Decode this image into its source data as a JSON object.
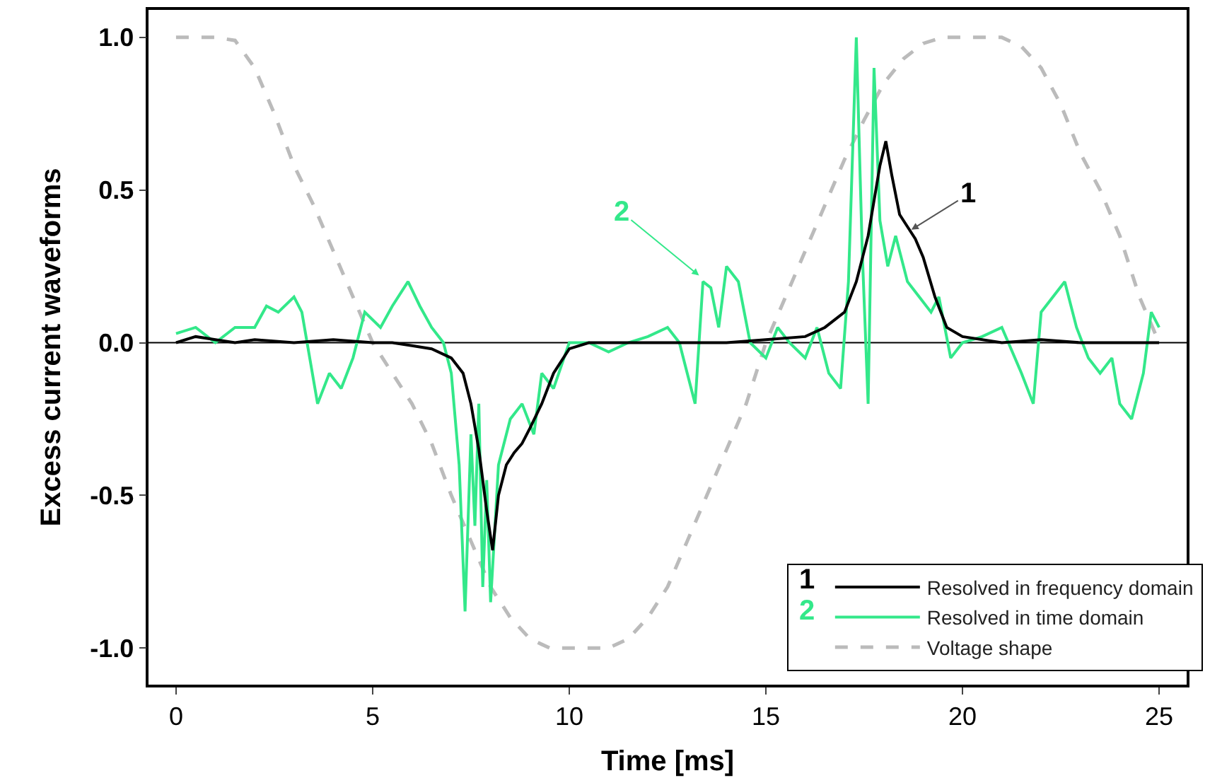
{
  "chart_data": {
    "type": "line",
    "xlabel": "Time [ms]",
    "ylabel": "Excess current waveforms",
    "xlim": [
      -0.7,
      25.7
    ],
    "xticks": [
      0,
      5,
      10,
      15,
      20,
      25
    ],
    "ylim": [
      -1.12,
      1.09
    ],
    "yticks": [
      {
        "value": -1,
        "label": "-1.0"
      },
      {
        "value": -0.5,
        "label": "-0.5"
      },
      {
        "value": 0,
        "label": "0.0"
      },
      {
        "value": 0.5,
        "label": "0.5"
      },
      {
        "value": 1,
        "label": "1.0"
      }
    ],
    "grid": false,
    "legend": "bottom right",
    "marker": "none",
    "ref_lines": [
      {
        "axis": "y",
        "value": 0,
        "color": "#000000",
        "line_style": "solid"
      }
    ],
    "annotations": [
      {
        "text": "1",
        "x": 18.7,
        "y": 0.37
      },
      {
        "text": "2",
        "x": 13.3,
        "y": 0.22
      },
      "1",
      "2"
    ],
    "series": [
      {
        "name": "Resolved in frequency domain",
        "color": "#000000",
        "line_style": "solid",
        "x": [
          0,
          0.5,
          1,
          1.5,
          2,
          3,
          4,
          5,
          5.5,
          6,
          6.5,
          7,
          7.3,
          7.5,
          7.7,
          7.9,
          8.05,
          8.2,
          8.4,
          8.6,
          8.8,
          9,
          9.3,
          9.6,
          10,
          10.5,
          12,
          14,
          15,
          16,
          16.5,
          17,
          17.3,
          17.6,
          17.9,
          18.05,
          18.2,
          18.4,
          18.6,
          18.8,
          19,
          19.3,
          19.6,
          20,
          21,
          22,
          23,
          24,
          25
        ],
        "values": [
          0.0,
          0.02,
          0.01,
          0.0,
          0.01,
          0.0,
          0.01,
          0.0,
          0.0,
          -0.01,
          -0.02,
          -0.05,
          -0.1,
          -0.2,
          -0.35,
          -0.55,
          -0.68,
          -0.5,
          -0.4,
          -0.36,
          -0.33,
          -0.28,
          -0.2,
          -0.1,
          -0.02,
          0.0,
          0.0,
          0.0,
          0.01,
          0.02,
          0.05,
          0.1,
          0.2,
          0.35,
          0.58,
          0.66,
          0.55,
          0.42,
          0.38,
          0.34,
          0.28,
          0.15,
          0.05,
          0.02,
          0.0,
          0.01,
          0.0,
          0.0,
          0.0
        ]
      },
      {
        "name": "Resolved in time domain",
        "color": "#33e88a",
        "line_style": "solid",
        "x": [
          0,
          0.5,
          1,
          1.5,
          2,
          2.3,
          2.6,
          3,
          3.2,
          3.4,
          3.6,
          3.9,
          4.2,
          4.5,
          4.8,
          5.2,
          5.5,
          5.9,
          6.2,
          6.5,
          6.8,
          7.0,
          7.2,
          7.35,
          7.5,
          7.6,
          7.7,
          7.8,
          7.9,
          8.0,
          8.2,
          8.5,
          8.8,
          9.1,
          9.3,
          9.6,
          10,
          10.5,
          11,
          11.5,
          12,
          12.5,
          12.8,
          13,
          13.2,
          13.4,
          13.6,
          13.8,
          14,
          14.3,
          14.6,
          15,
          15.3,
          15.6,
          16,
          16.3,
          16.6,
          16.9,
          17.1,
          17.3,
          17.45,
          17.6,
          17.75,
          17.9,
          18.1,
          18.3,
          18.6,
          18.9,
          19.2,
          19.4,
          19.7,
          20,
          20.5,
          21,
          21.5,
          21.8,
          22,
          22.3,
          22.6,
          22.9,
          23.2,
          23.5,
          23.8,
          24,
          24.3,
          24.6,
          24.8,
          25
        ],
        "values": [
          0.03,
          0.05,
          0.0,
          0.05,
          0.05,
          0.12,
          0.1,
          0.15,
          0.1,
          -0.05,
          -0.2,
          -0.1,
          -0.15,
          -0.05,
          0.1,
          0.05,
          0.12,
          0.2,
          0.12,
          0.05,
          0.0,
          -0.1,
          -0.4,
          -0.88,
          -0.3,
          -0.6,
          -0.2,
          -0.8,
          -0.45,
          -0.85,
          -0.4,
          -0.25,
          -0.2,
          -0.3,
          -0.1,
          -0.15,
          0.0,
          0.0,
          -0.03,
          0.0,
          0.02,
          0.05,
          0.0,
          -0.1,
          -0.2,
          0.2,
          0.18,
          0.05,
          0.25,
          0.2,
          0.0,
          -0.05,
          0.05,
          0.0,
          -0.05,
          0.05,
          -0.1,
          -0.15,
          0.2,
          1.0,
          0.3,
          -0.2,
          0.9,
          0.4,
          0.25,
          0.35,
          0.2,
          0.15,
          0.1,
          0.15,
          -0.05,
          0.0,
          0.02,
          0.05,
          -0.1,
          -0.2,
          0.1,
          0.15,
          0.2,
          0.05,
          -0.05,
          -0.1,
          -0.05,
          -0.2,
          -0.25,
          -0.1,
          0.1,
          0.05
        ]
      },
      {
        "name": "Voltage shape",
        "color": "#bbbbbb",
        "line_style": "dashed",
        "x": [
          0,
          1,
          1.5,
          2,
          2.5,
          3,
          3.5,
          4,
          4.5,
          5,
          5.5,
          6,
          6.5,
          7,
          7.5,
          8,
          8.5,
          9,
          9.5,
          11,
          11.5,
          12,
          12.5,
          13,
          13.5,
          14,
          14.5,
          15,
          15.5,
          16,
          16.5,
          17,
          17.5,
          18,
          18.5,
          19,
          19.5,
          21,
          21.5,
          22,
          22.5,
          23,
          23.5,
          24,
          24.5,
          25
        ],
        "values": [
          1.0,
          1.0,
          0.99,
          0.9,
          0.75,
          0.58,
          0.45,
          0.3,
          0.15,
          0.0,
          -0.1,
          -0.2,
          -0.33,
          -0.5,
          -0.65,
          -0.8,
          -0.9,
          -0.97,
          -1.0,
          -1.0,
          -0.97,
          -0.9,
          -0.8,
          -0.65,
          -0.5,
          -0.35,
          -0.2,
          0.0,
          0.15,
          0.3,
          0.45,
          0.6,
          0.73,
          0.85,
          0.93,
          0.98,
          1.0,
          1.0,
          0.97,
          0.9,
          0.78,
          0.62,
          0.5,
          0.35,
          0.15,
          0.0
        ]
      }
    ]
  }
}
